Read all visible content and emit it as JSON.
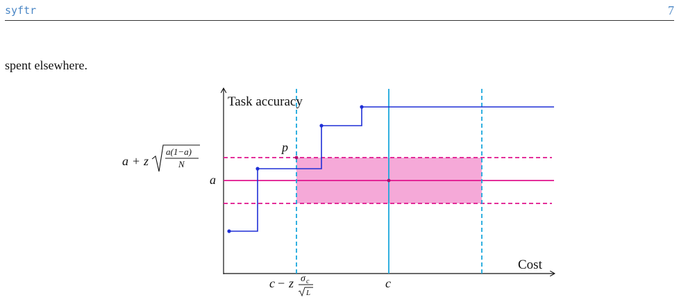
{
  "header": {
    "left": "syftr",
    "right": "7"
  },
  "body": {
    "text": "spent elsewhere."
  },
  "figure": {
    "axis_y_label": "Task accuracy",
    "axis_x_label": "Cost",
    "label_p": "p",
    "label_a": "a",
    "label_c": "c",
    "colors": {
      "step": "#1f2fd6",
      "band_line": "#e0138c",
      "band_fill": "#f5a9d8",
      "cost_line": "#1ba7dc",
      "axis": "#111111"
    }
  }
}
